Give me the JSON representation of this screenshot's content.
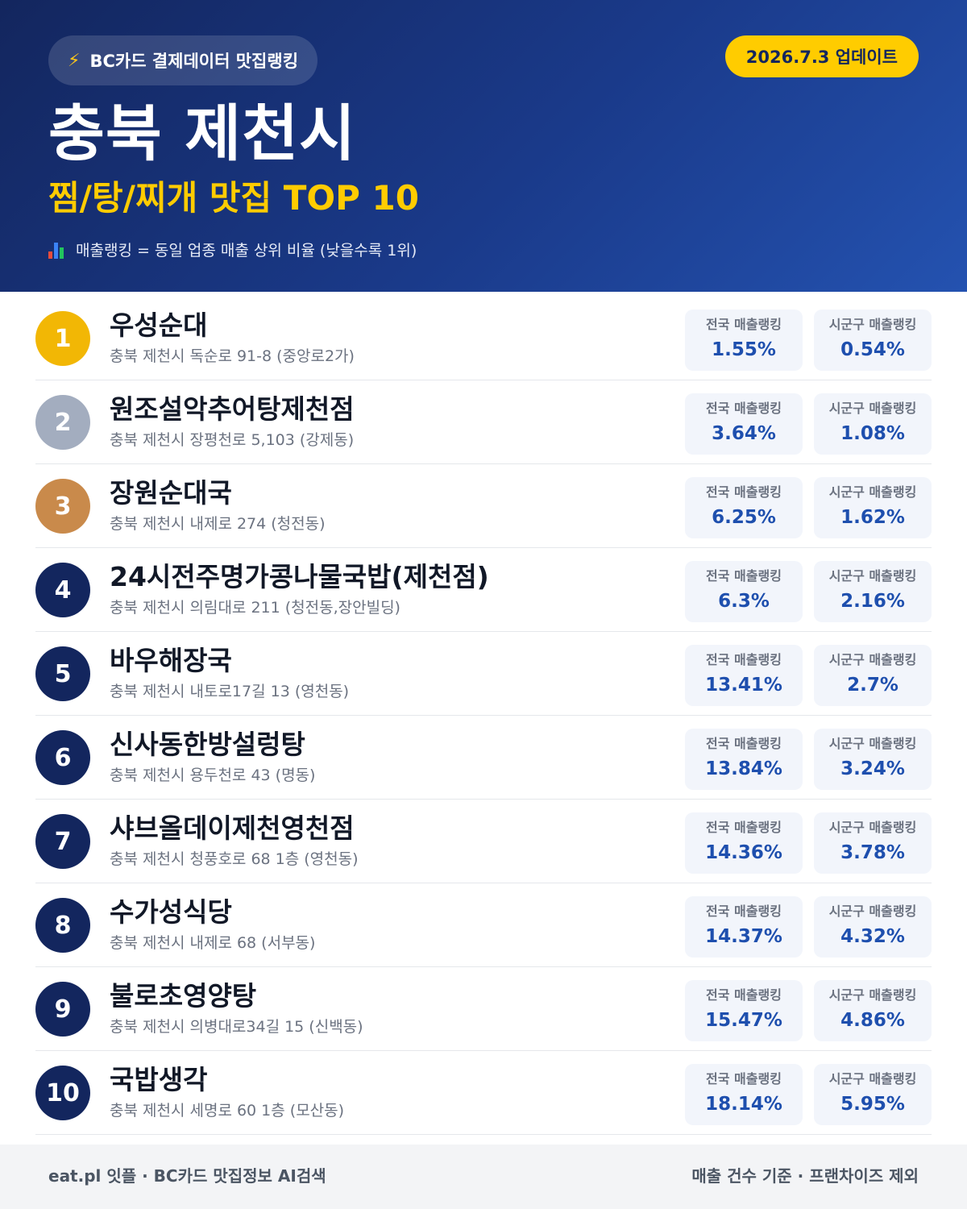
{
  "header": {
    "brand_icon": "lightning-bolt-icon",
    "brand_label": "BC카드 결제데이터 맛집랭킹",
    "update_label": "2026.7.3 업데이트",
    "title": "충북 제천시",
    "subtitle": "찜/탕/찌개 맛집 TOP 10",
    "legend_icon": "bar-chart-icon",
    "legend_text": "매출랭킹 = 동일 업종 매출 상위 비율 (낮을수록 1위)"
  },
  "colors": {
    "header_start": "#13265e",
    "header_end": "#2452b0",
    "accent_yellow": "#ffcc00",
    "rank_gold": "#f2b705",
    "rank_silver": "#a3adbf",
    "rank_bronze": "#c98a4b",
    "rank_default": "#13265e",
    "value_blue": "#1e4fae"
  },
  "stat_labels": {
    "national": "전국 매출랭킹",
    "local": "시군구 매출랭킹"
  },
  "restaurants": [
    {
      "rank": "1",
      "name": "우성순대",
      "address": "충북 제천시 독순로 91-8 (중앙로2가)",
      "national": "1.55%",
      "local": "0.54%",
      "color": "#f2b705"
    },
    {
      "rank": "2",
      "name": "원조설악추어탕제천점",
      "address": "충북 제천시 장평천로 5,103 (강제동)",
      "national": "3.64%",
      "local": "1.08%",
      "color": "#a3adbf"
    },
    {
      "rank": "3",
      "name": "장원순대국",
      "address": "충북 제천시 내제로 274 (청전동)",
      "national": "6.25%",
      "local": "1.62%",
      "color": "#c98a4b"
    },
    {
      "rank": "4",
      "name": "24시전주명가콩나물국밥(제천점)",
      "address": "충북 제천시 의림대로 211 (청전동,장안빌딩)",
      "national": "6.3%",
      "local": "2.16%",
      "color": "#13265e"
    },
    {
      "rank": "5",
      "name": "바우해장국",
      "address": "충북 제천시 내토로17길 13 (영천동)",
      "national": "13.41%",
      "local": "2.7%",
      "color": "#13265e"
    },
    {
      "rank": "6",
      "name": "신사동한방설렁탕",
      "address": "충북 제천시 용두천로 43 (명동)",
      "national": "13.84%",
      "local": "3.24%",
      "color": "#13265e"
    },
    {
      "rank": "7",
      "name": "샤브올데이제천영천점",
      "address": "충북 제천시 청풍호로 68 1층 (영천동)",
      "national": "14.36%",
      "local": "3.78%",
      "color": "#13265e"
    },
    {
      "rank": "8",
      "name": "수가성식당",
      "address": "충북 제천시 내제로 68 (서부동)",
      "national": "14.37%",
      "local": "4.32%",
      "color": "#13265e"
    },
    {
      "rank": "9",
      "name": "불로초영양탕",
      "address": "충북 제천시 의병대로34길 15 (신백동)",
      "national": "15.47%",
      "local": "4.86%",
      "color": "#13265e"
    },
    {
      "rank": "10",
      "name": "국밥생각",
      "address": "충북 제천시 세명로 60 1층 (모산동)",
      "national": "18.14%",
      "local": "5.95%",
      "color": "#13265e"
    }
  ],
  "footer": {
    "left": "eat.pl 잇플 · BC카드 맛집정보 AI검색",
    "right": "매출 건수 기준 · 프랜차이즈 제외"
  }
}
